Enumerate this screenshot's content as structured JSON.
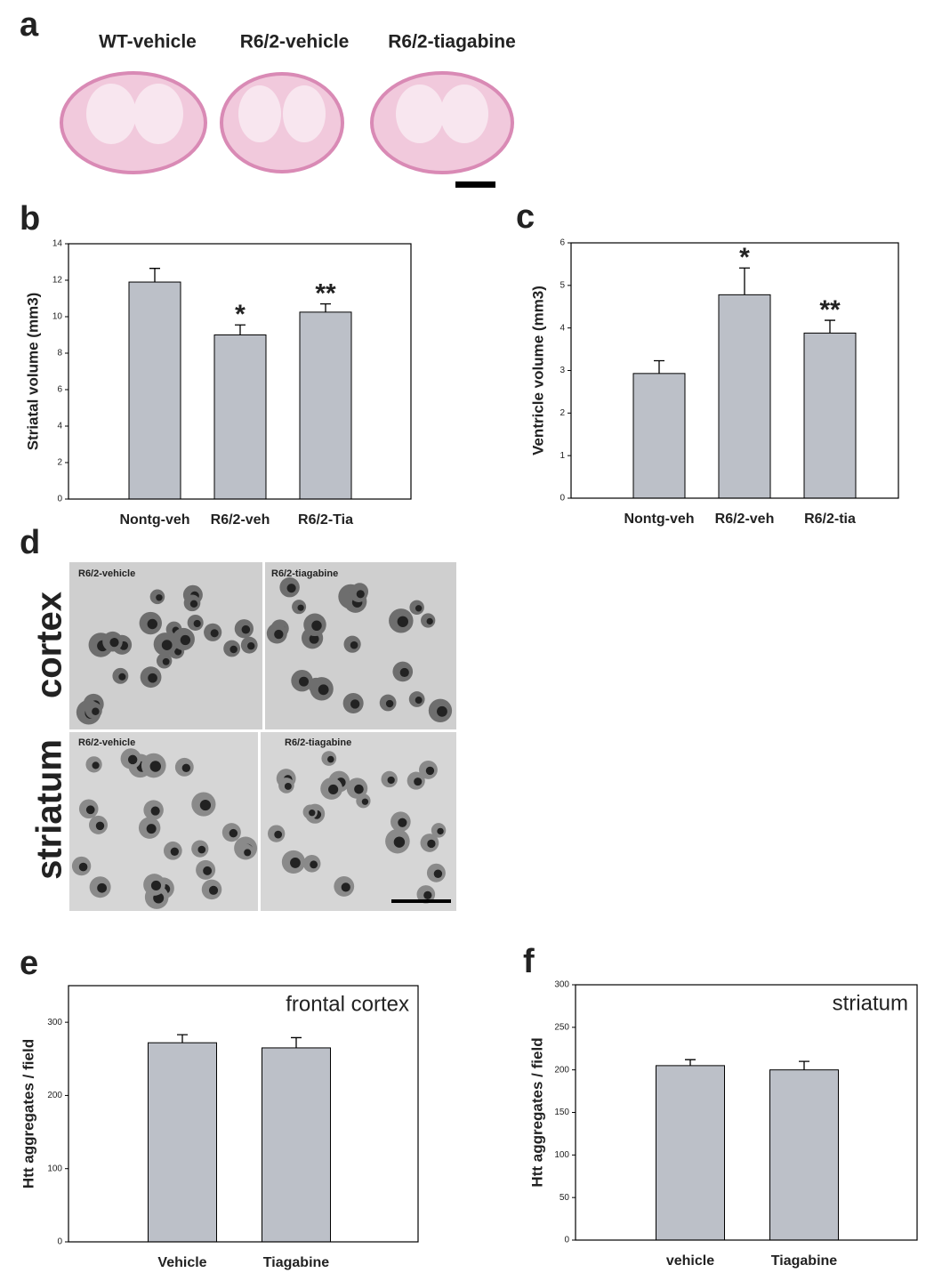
{
  "figure": {
    "panel_labels": [
      "a",
      "b",
      "c",
      "d",
      "e",
      "f"
    ],
    "brain_labels": [
      "WT-vehicle",
      "R6/2-vehicle",
      "R6/2-tiagabine"
    ],
    "micrograph_labels": [
      "R6/2-vehicle",
      "R6/2-tiagabine",
      "R6/2-vehicle",
      "R6/2-tiagabine"
    ],
    "region_labels": [
      "cortex",
      "striatum"
    ]
  },
  "chart_data": [
    {
      "type": "bar",
      "y_label": "Striatal volume (mm3)",
      "categories": [
        "Nontg-veh",
        "R6/2-veh",
        "R6/2-Tia"
      ],
      "values": [
        11.9,
        9.0,
        10.25
      ],
      "errors": [
        0.75,
        0.55,
        0.45
      ],
      "annotations": [
        null,
        "*",
        "**"
      ],
      "color": "#bcc0c8",
      "ylim": [
        0,
        14
      ],
      "yticks": [
        0,
        2,
        4,
        6,
        8,
        10,
        12,
        14
      ]
    },
    {
      "type": "bar",
      "y_label": "Ventricle volume (mm3)",
      "categories": [
        "Nontg-veh",
        "R6/2-veh",
        "R6/2-tia"
      ],
      "values": [
        2.93,
        4.78,
        3.88
      ],
      "errors": [
        0.3,
        0.63,
        0.3
      ],
      "annotations": [
        null,
        "*",
        "**"
      ],
      "color": "#bcc0c8",
      "ylim": [
        0,
        6
      ],
      "yticks": [
        0,
        1,
        2,
        3,
        4,
        5,
        6
      ]
    },
    {
      "type": "bar",
      "y_label": "Htt aggregates / field",
      "inset_label": "frontal cortex",
      "categories": [
        "Vehicle",
        "Tiagabine"
      ],
      "values": [
        272,
        265
      ],
      "errors": [
        11,
        14
      ],
      "color": "#bcc0c8",
      "ylim": [
        0,
        350
      ],
      "yticks": [
        0,
        100,
        200,
        300
      ]
    },
    {
      "type": "bar",
      "y_label": "Htt aggregates / field",
      "inset_label": "striatum",
      "categories": [
        "vehicle",
        "Tiagabine"
      ],
      "values": [
        205,
        200
      ],
      "errors": [
        7,
        10
      ],
      "color": "#bcc0c8",
      "ylim": [
        0,
        300
      ],
      "yticks": [
        0,
        50,
        100,
        150,
        200,
        250,
        300
      ]
    }
  ]
}
